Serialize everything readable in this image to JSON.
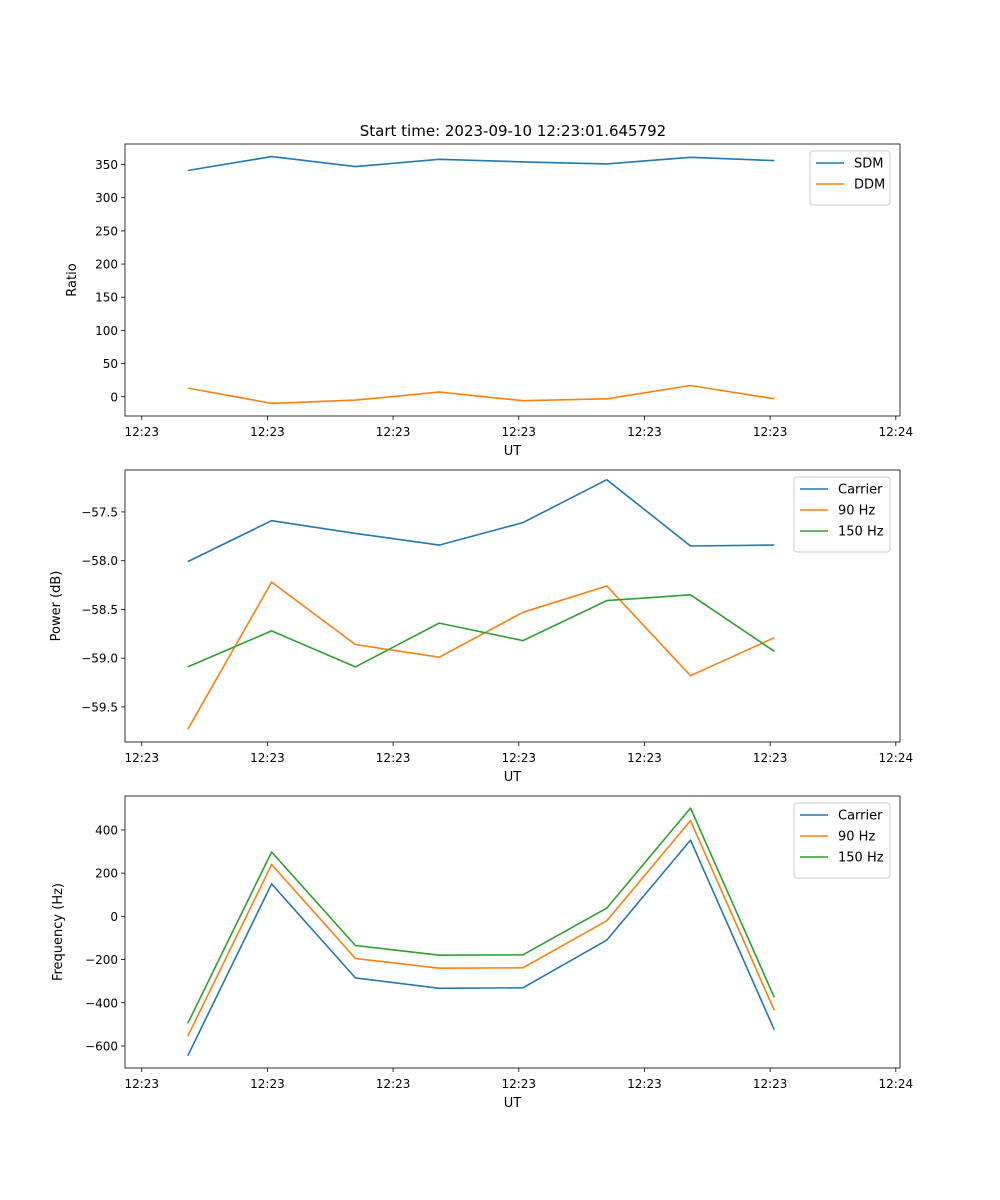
{
  "figure_title": "Start time: 2023-09-10 12:23:01.645792",
  "colors": {
    "blue": "#1f77b4",
    "orange": "#ff7f0e",
    "green": "#2ca02c"
  },
  "chart_data": [
    {
      "type": "line",
      "title": "Start time: 2023-09-10 12:23:01.645792",
      "xlabel": "UT",
      "ylabel": "Ratio",
      "x": [
        1,
        2,
        3,
        4,
        5,
        6,
        7,
        8
      ],
      "xlim": [
        0.25,
        9.5
      ],
      "xticks": [
        0.45,
        1.95,
        3.45,
        4.95,
        6.45,
        7.95,
        9.45
      ],
      "xtick_labels": [
        "12:23",
        "12:23",
        "12:23",
        "12:23",
        "12:23",
        "12:23",
        "12:24"
      ],
      "ylim": [
        -29,
        381
      ],
      "yticks": [
        0,
        50,
        100,
        150,
        200,
        250,
        300,
        350
      ],
      "ytick_labels": [
        "0",
        "50",
        "100",
        "150",
        "200",
        "250",
        "300",
        "350"
      ],
      "legend": "top-right",
      "series": [
        {
          "name": "SDM",
          "color": "#1f77b4",
          "values": [
            341,
            362,
            347,
            358,
            354,
            351,
            361,
            356
          ]
        },
        {
          "name": "DDM",
          "color": "#ff7f0e",
          "values": [
            13,
            -10,
            -5,
            7,
            -6,
            -3,
            17,
            -3
          ]
        }
      ]
    },
    {
      "type": "line",
      "title": "",
      "xlabel": "UT",
      "ylabel": "Power (dB)",
      "x": [
        1,
        2,
        3,
        4,
        5,
        6,
        7,
        8
      ],
      "xlim": [
        0.25,
        9.5
      ],
      "xticks": [
        0.45,
        1.95,
        3.45,
        4.95,
        6.45,
        7.95,
        9.45
      ],
      "xtick_labels": [
        "12:23",
        "12:23",
        "12:23",
        "12:23",
        "12:23",
        "12:23",
        "12:24"
      ],
      "ylim": [
        -59.86,
        -57.07
      ],
      "yticks": [
        -59.5,
        -59.0,
        -58.5,
        -58.0,
        -57.5
      ],
      "ytick_labels": [
        "−59.5",
        "−59.0",
        "−58.5",
        "−58.0",
        "−57.5"
      ],
      "legend": "top-right",
      "series": [
        {
          "name": "Carrier",
          "color": "#1f77b4",
          "values": [
            -58.01,
            -57.59,
            -57.72,
            -57.84,
            -57.61,
            -57.17,
            -57.85,
            -57.84
          ]
        },
        {
          "name": "90 Hz",
          "color": "#ff7f0e",
          "values": [
            -59.73,
            -58.22,
            -58.86,
            -58.99,
            -58.53,
            -58.26,
            -59.18,
            -58.79
          ]
        },
        {
          "name": "150 Hz",
          "color": "#2ca02c",
          "values": [
            -59.09,
            -58.72,
            -59.09,
            -58.64,
            -58.82,
            -58.41,
            -58.35,
            -58.93
          ]
        }
      ]
    },
    {
      "type": "line",
      "title": "",
      "xlabel": "UT",
      "ylabel": "Frequency (Hz)",
      "x": [
        1,
        2,
        3,
        4,
        5,
        6,
        7,
        8
      ],
      "xlim": [
        0.25,
        9.5
      ],
      "xticks": [
        0.45,
        1.95,
        3.45,
        4.95,
        6.45,
        7.95,
        9.45
      ],
      "xtick_labels": [
        "12:23",
        "12:23",
        "12:23",
        "12:23",
        "12:23",
        "12:23",
        "12:24"
      ],
      "ylim": [
        -702,
        557
      ],
      "yticks": [
        -600,
        -400,
        -200,
        0,
        200,
        400
      ],
      "ytick_labels": [
        "−600",
        "−400",
        "−200",
        "0",
        "200",
        "400"
      ],
      "legend": "top-right",
      "series": [
        {
          "name": "Carrier",
          "color": "#1f77b4",
          "values": [
            -645,
            150,
            -285,
            -333,
            -331,
            -110,
            353,
            -525
          ]
        },
        {
          "name": "90 Hz",
          "color": "#ff7f0e",
          "values": [
            -555,
            240,
            -195,
            -240,
            -238,
            -20,
            443,
            -435
          ]
        },
        {
          "name": "150 Hz",
          "color": "#2ca02c",
          "values": [
            -495,
            298,
            -135,
            -180,
            -178,
            38,
            501,
            -375
          ]
        }
      ]
    }
  ]
}
